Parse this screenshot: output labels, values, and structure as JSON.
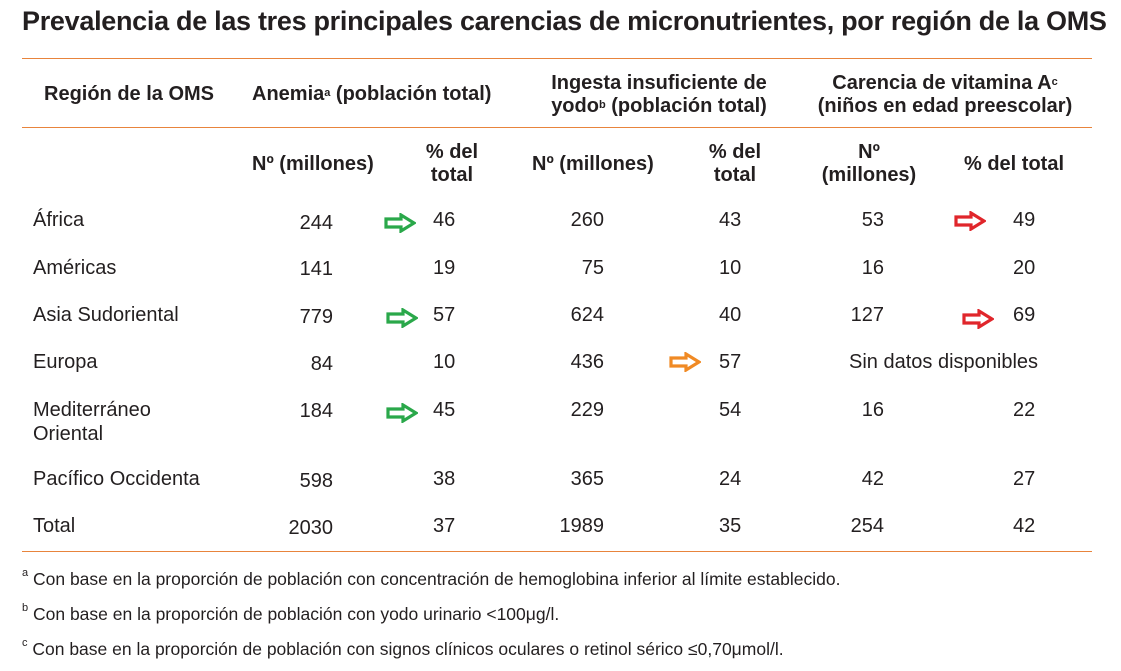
{
  "title": "Prevalencia de las tres principales carencias de micronutrientes, por región de la OMS",
  "colors": {
    "rule": "#e8843c",
    "arrow_green": "#2aa84a",
    "arrow_orange": "#f08a24",
    "arrow_red": "#e0262b"
  },
  "header": {
    "region": "Región de la OMS",
    "anemia_label": "Anemia",
    "anemia_sup": "a",
    "anemia_rest": " (población total)",
    "iodine_line1": "Ingesta insuficiente de",
    "iodine_line2_pre": "yodo",
    "iodine_sup": "b",
    "iodine_line2_post": " (población total)",
    "vita_line1_pre": "Carencia de vitamina A",
    "vita_sup": "c",
    "vita_line2": "(niños en edad preescolar)"
  },
  "subheader": {
    "anemia_n": "Nº (millones)",
    "anemia_pct_1": "% del",
    "anemia_pct_2": "total",
    "iodine_n": "Nº (millones)",
    "iodine_pct_1": "% del",
    "iodine_pct_2": "total",
    "vita_n_1": "Nº",
    "vita_n_2": "(millones)",
    "vita_pct": "% del total"
  },
  "rows": [
    {
      "region": "África",
      "anemia_n": "244",
      "anemia_pct": "46",
      "iodine_n": "260",
      "iodine_pct": "43",
      "vita_n": "53",
      "vita_pct": "49"
    },
    {
      "region": "Américas",
      "anemia_n": "141",
      "anemia_pct": "19",
      "iodine_n": "75",
      "iodine_pct": "10",
      "vita_n": "16",
      "vita_pct": "20"
    },
    {
      "region": "Asia Sudoriental",
      "anemia_n": "779",
      "anemia_pct": "57",
      "iodine_n": "624",
      "iodine_pct": "40",
      "vita_n": "127",
      "vita_pct": "69"
    },
    {
      "region": "Europa",
      "anemia_n": "84",
      "anemia_pct": "10",
      "iodine_n": "436",
      "iodine_pct": "57",
      "vita_na": "Sin datos disponibles"
    },
    {
      "region_1": "Mediterráneo",
      "region_2": "Oriental",
      "anemia_n": "184",
      "anemia_pct": "45",
      "iodine_n": "229",
      "iodine_pct": "54",
      "vita_n": "16",
      "vita_pct": "22"
    },
    {
      "region": "Pacífico Occidenta",
      "anemia_n": "598",
      "anemia_pct": "38",
      "iodine_n": "365",
      "iodine_pct": "24",
      "vita_n": "42",
      "vita_pct": "27"
    },
    {
      "region": "Total",
      "anemia_n": "2030",
      "anemia_pct": "37",
      "iodine_n": "1989",
      "iodine_pct": "35",
      "vita_n": "254",
      "vita_pct": "42"
    }
  ],
  "footnotes": [
    {
      "mark": "a",
      "text": " Con base en la proporción de población con concentración de hemoglobina inferior al límite establecido."
    },
    {
      "mark": "b",
      "text": "  Con base en la proporción de población con yodo urinario <100μg/l."
    },
    {
      "mark": "c",
      "text": "  Con  base en la proporción de población con signos clínicos oculares o retinol sérico ≤0,70μmol/l."
    }
  ]
}
